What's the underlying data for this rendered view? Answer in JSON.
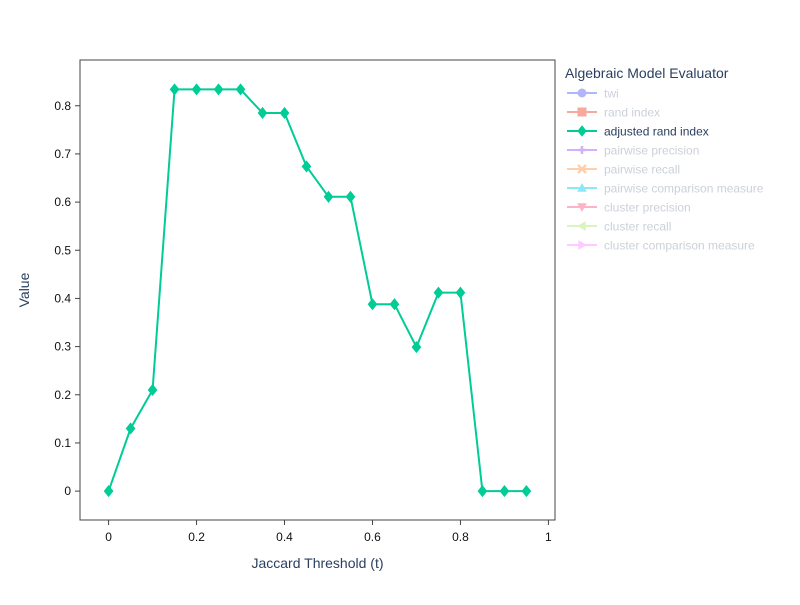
{
  "chart_data": {
    "type": "line",
    "title": "",
    "xlabel": "Jaccard Threshold (t)",
    "ylabel": "Value",
    "xlim": [
      -0.065,
      1.015
    ],
    "ylim": [
      -0.06,
      0.895
    ],
    "x_ticks": [
      0,
      0.2,
      0.4,
      0.6,
      0.8,
      1
    ],
    "x_tick_labels": [
      "0",
      "0.2",
      "0.4",
      "0.6",
      "0.8",
      "1"
    ],
    "y_ticks": [
      0,
      0.1,
      0.2,
      0.3,
      0.4,
      0.5,
      0.6,
      0.7,
      0.8
    ],
    "y_tick_labels": [
      "0",
      "0.1",
      "0.2",
      "0.3",
      "0.4",
      "0.5",
      "0.6",
      "0.7",
      "0.8"
    ],
    "grid": false,
    "legend_position": "right",
    "legend_title": "Algebraic Model Evaluator",
    "series": [
      {
        "name": "twi",
        "color": "#636efa",
        "marker": "circle",
        "visible": false,
        "x": [],
        "y": []
      },
      {
        "name": "rand index",
        "color": "#EF553B",
        "marker": "square",
        "visible": false,
        "x": [],
        "y": []
      },
      {
        "name": "adjusted rand index",
        "color": "#00cc96",
        "marker": "diamond",
        "visible": true,
        "x": [
          0,
          0.05,
          0.1,
          0.15,
          0.2,
          0.25,
          0.3,
          0.35,
          0.4,
          0.45,
          0.5,
          0.55,
          0.6,
          0.65,
          0.7,
          0.75,
          0.8,
          0.85,
          0.9,
          0.95
        ],
        "y": [
          0,
          0.13,
          0.21,
          0.834,
          0.834,
          0.834,
          0.834,
          0.785,
          0.785,
          0.674,
          0.611,
          0.611,
          0.388,
          0.388,
          0.299,
          0.412,
          0.412,
          0,
          0,
          0
        ]
      },
      {
        "name": "pairwise precision",
        "color": "#ab63fa",
        "marker": "cross",
        "visible": false,
        "x": [],
        "y": []
      },
      {
        "name": "pairwise recall",
        "color": "#FFA15A",
        "marker": "x",
        "visible": false,
        "x": [],
        "y": []
      },
      {
        "name": "pairwise comparison measure",
        "color": "#19d3f3",
        "marker": "triangle-up",
        "visible": false,
        "x": [],
        "y": []
      },
      {
        "name": "cluster precision",
        "color": "#FF6692",
        "marker": "triangle-down",
        "visible": false,
        "x": [],
        "y": []
      },
      {
        "name": "cluster recall",
        "color": "#B6E880",
        "marker": "triangle-left",
        "visible": false,
        "x": [],
        "y": []
      },
      {
        "name": "cluster comparison measure",
        "color": "#FF97FF",
        "marker": "triangle-right",
        "visible": false,
        "x": [],
        "y": []
      }
    ]
  },
  "colors": {
    "axis_text": "#2a3f5f",
    "tick_text": "#111111",
    "hidden_legend_text": "#98a2b3"
  }
}
